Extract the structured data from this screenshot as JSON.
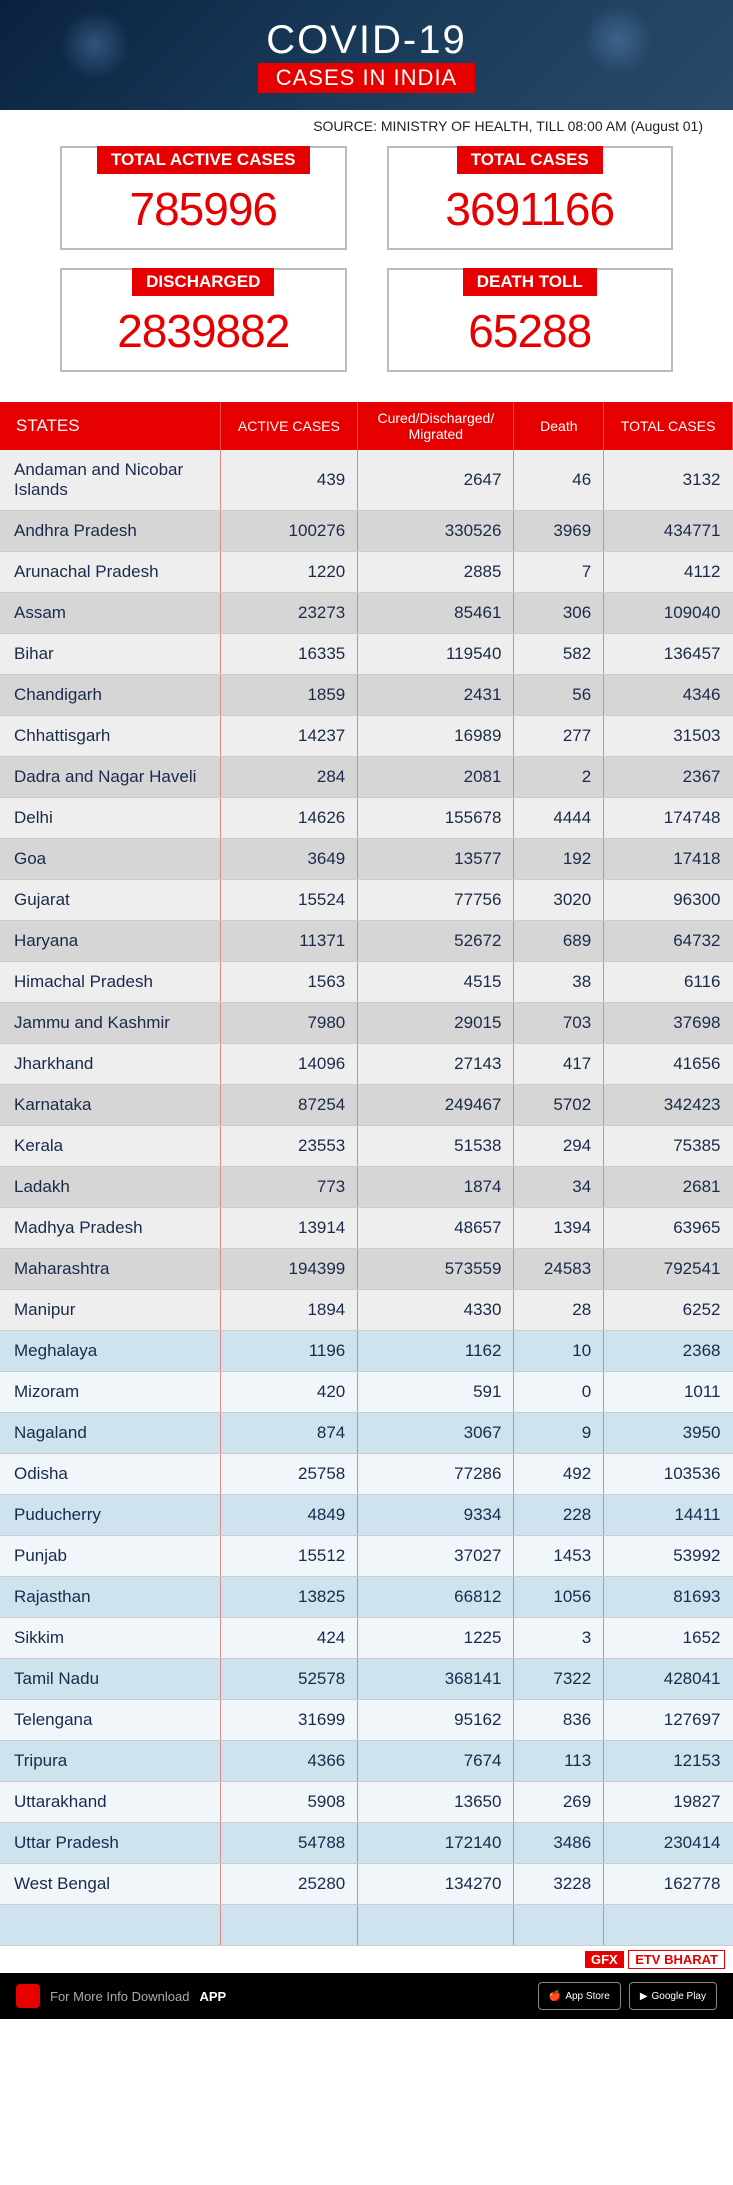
{
  "hero": {
    "title": "COVID-19",
    "subtitle": "CASES IN INDIA"
  },
  "source": "SOURCE: MINISTRY OF HEALTH, TILL 08:00 AM (August 01)",
  "summary": [
    {
      "label": "TOTAL ACTIVE CASES",
      "value": "785996"
    },
    {
      "label": "TOTAL CASES",
      "value": "3691166"
    },
    {
      "label": "DISCHARGED",
      "value": "2839882"
    },
    {
      "label": "DEATH TOLL",
      "value": "65288"
    }
  ],
  "table": {
    "columns": [
      "STATES",
      "ACTIVE CASES",
      "Cured/Discharged/\nMigrated",
      "Death",
      "TOTAL CASES"
    ],
    "rows": [
      [
        "Andaman and Nicobar Islands",
        "439",
        "2647",
        "46",
        "3132"
      ],
      [
        "Andhra Pradesh",
        "100276",
        "330526",
        "3969",
        "434771"
      ],
      [
        "Arunachal Pradesh",
        "1220",
        "2885",
        "7",
        "4112"
      ],
      [
        "Assam",
        "23273",
        "85461",
        "306",
        "109040"
      ],
      [
        "Bihar",
        "16335",
        "119540",
        "582",
        "136457"
      ],
      [
        "Chandigarh",
        "1859",
        "2431",
        "56",
        "4346"
      ],
      [
        "Chhattisgarh",
        "14237",
        "16989",
        "277",
        "31503"
      ],
      [
        "Dadra and Nagar Haveli",
        "284",
        "2081",
        "2",
        "2367"
      ],
      [
        "Delhi",
        "14626",
        "155678",
        "4444",
        "174748"
      ],
      [
        "Goa",
        "3649",
        "13577",
        "192",
        "17418"
      ],
      [
        "Gujarat",
        "15524",
        "77756",
        "3020",
        "96300"
      ],
      [
        "Haryana",
        "11371",
        "52672",
        "689",
        "64732"
      ],
      [
        "Himachal Pradesh",
        "1563",
        "4515",
        "38",
        "6116"
      ],
      [
        "Jammu and Kashmir",
        "7980",
        "29015",
        "703",
        "37698"
      ],
      [
        "Jharkhand",
        "14096",
        "27143",
        "417",
        "41656"
      ],
      [
        "Karnataka",
        "87254",
        "249467",
        "5702",
        "342423"
      ],
      [
        "Kerala",
        "23553",
        "51538",
        "294",
        "75385"
      ],
      [
        "Ladakh",
        "773",
        "1874",
        "34",
        "2681"
      ],
      [
        "Madhya Pradesh",
        "13914",
        "48657",
        "1394",
        "63965"
      ],
      [
        "Maharashtra",
        "194399",
        "573559",
        "24583",
        "792541"
      ],
      [
        "Manipur",
        "1894",
        "4330",
        "28",
        "6252"
      ],
      [
        "Meghalaya",
        "1196",
        "1162",
        "10",
        "2368"
      ],
      [
        "Mizoram",
        "420",
        "591",
        "0",
        "1011"
      ],
      [
        "Nagaland",
        "874",
        "3067",
        "9",
        "3950"
      ],
      [
        "Odisha",
        "25758",
        "77286",
        "492",
        "103536"
      ],
      [
        "Puducherry",
        "4849",
        "9334",
        "228",
        "14411"
      ],
      [
        "Punjab",
        "15512",
        "37027",
        "1453",
        "53992"
      ],
      [
        "Rajasthan",
        "13825",
        "66812",
        "1056",
        "81693"
      ],
      [
        "Sikkim",
        "424",
        "1225",
        "3",
        "1652"
      ],
      [
        "Tamil Nadu",
        "52578",
        "368141",
        "7322",
        "428041"
      ],
      [
        "Telengana",
        "31699",
        "95162",
        "836",
        "127697"
      ],
      [
        "Tripura",
        "4366",
        "7674",
        "113",
        "12153"
      ],
      [
        "Uttarakhand",
        "5908",
        "13650",
        "269",
        "19827"
      ],
      [
        "Uttar Pradesh",
        "54788",
        "172140",
        "3486",
        "230414"
      ],
      [
        "West Bengal",
        "25280",
        "134270",
        "3228",
        "162778"
      ]
    ],
    "row_colors_pattern": [
      "#eeeeee",
      "#d6d6d6",
      "#eeeeee",
      "#d6d6d6",
      "#eeeeee",
      "#d6d6d6",
      "#eeeeee",
      "#d6d6d6",
      "#eeeeee",
      "#d6d6d6",
      "#eeeeee",
      "#d6d6d6",
      "#eeeeee",
      "#d6d6d6",
      "#eeeeee",
      "#d6d6d6",
      "#eeeeee",
      "#d6d6d6",
      "#eeeeee",
      "#d6d6d6",
      "#eeeeee",
      "#cfe3ef",
      "#f0f6fa",
      "#cfe3ef",
      "#f0f6fa",
      "#cfe3ef",
      "#f0f6fa",
      "#cfe3ef",
      "#f0f6fa",
      "#cfe3ef",
      "#f0f6fa",
      "#cfe3ef",
      "#f0f6fa",
      "#cfe3ef",
      "#f0f6fa"
    ]
  },
  "badges": {
    "gfx": "GFX",
    "etv": "ETV BHARAT"
  },
  "footer": {
    "text": "For More Info Download",
    "app": "APP",
    "store1": "App Store",
    "store2": "Google Play"
  },
  "colors": {
    "accent": "#e60000",
    "hero_bg": "#1a3a5a",
    "text": "#1a2a4a"
  }
}
